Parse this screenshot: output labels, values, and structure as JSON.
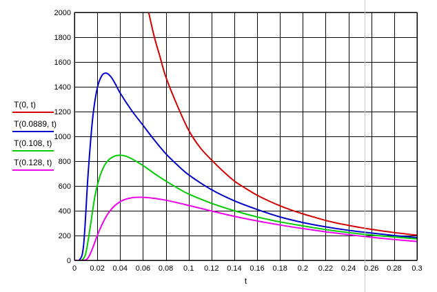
{
  "chart_data": {
    "type": "line",
    "xlabel": "t",
    "ylabel": "",
    "xlim": [
      0,
      0.3
    ],
    "ylim": [
      0,
      2000
    ],
    "grid": true,
    "legend_placement": "left",
    "x_ticks": [
      "0",
      "0.02",
      "0.04",
      "0.06",
      "0.08",
      "0.1",
      "0.12",
      "0.14",
      "0.16",
      "0.18",
      "0.2",
      "0.22",
      "0.24",
      "0.26",
      "0.28",
      "0.3"
    ],
    "y_ticks": [
      "0",
      "200",
      "400",
      "600",
      "800",
      "1000",
      "1200",
      "1400",
      "1600",
      "1800",
      "2000"
    ],
    "series": [
      {
        "name": "T(0, t)",
        "color": "#d40000",
        "x": [
          0.065,
          0.07,
          0.075,
          0.08,
          0.09,
          0.1,
          0.11,
          0.12,
          0.13,
          0.14,
          0.15,
          0.16,
          0.17,
          0.18,
          0.19,
          0.2,
          0.21,
          0.22,
          0.23,
          0.24,
          0.25,
          0.26,
          0.27,
          0.28,
          0.29,
          0.3
        ],
        "values": [
          2000,
          1800,
          1640,
          1480,
          1250,
          1050,
          910,
          810,
          720,
          640,
          580,
          525,
          480,
          440,
          405,
          375,
          348,
          322,
          300,
          282,
          265,
          250,
          236,
          224,
          213,
          203
        ]
      },
      {
        "name": "T(0.0889, t)",
        "color": "#0000cc",
        "x": [
          0.004,
          0.008,
          0.012,
          0.016,
          0.02,
          0.024,
          0.028,
          0.032,
          0.036,
          0.04,
          0.05,
          0.06,
          0.07,
          0.08,
          0.09,
          0.1,
          0.12,
          0.14,
          0.16,
          0.18,
          0.2,
          0.22,
          0.24,
          0.26,
          0.28,
          0.3
        ],
        "values": [
          0,
          120,
          700,
          1150,
          1390,
          1490,
          1510,
          1480,
          1420,
          1350,
          1210,
          1090,
          970,
          860,
          770,
          690,
          570,
          480,
          410,
          350,
          305,
          270,
          242,
          220,
          200,
          183
        ]
      },
      {
        "name": "T(0.108, t)",
        "color": "#00cc00",
        "x": [
          0.006,
          0.01,
          0.014,
          0.018,
          0.022,
          0.026,
          0.03,
          0.035,
          0.04,
          0.045,
          0.05,
          0.06,
          0.07,
          0.08,
          0.09,
          0.1,
          0.12,
          0.14,
          0.16,
          0.18,
          0.2,
          0.22,
          0.24,
          0.26,
          0.28,
          0.3
        ],
        "values": [
          0,
          60,
          280,
          520,
          670,
          760,
          810,
          840,
          848,
          840,
          820,
          765,
          700,
          640,
          585,
          535,
          460,
          400,
          350,
          310,
          278,
          248,
          224,
          204,
          188,
          173
        ]
      },
      {
        "name": "T(0.128, t)",
        "color": "#ee00ee",
        "x": [
          0.008,
          0.012,
          0.016,
          0.02,
          0.025,
          0.03,
          0.035,
          0.04,
          0.045,
          0.05,
          0.055,
          0.06,
          0.065,
          0.07,
          0.08,
          0.09,
          0.1,
          0.12,
          0.14,
          0.16,
          0.18,
          0.2,
          0.22,
          0.24,
          0.26,
          0.28,
          0.3
        ],
        "values": [
          0,
          20,
          100,
          200,
          305,
          385,
          438,
          473,
          493,
          504,
          508,
          508,
          505,
          500,
          485,
          465,
          443,
          398,
          355,
          318,
          285,
          256,
          230,
          207,
          186,
          168,
          152
        ]
      }
    ]
  }
}
